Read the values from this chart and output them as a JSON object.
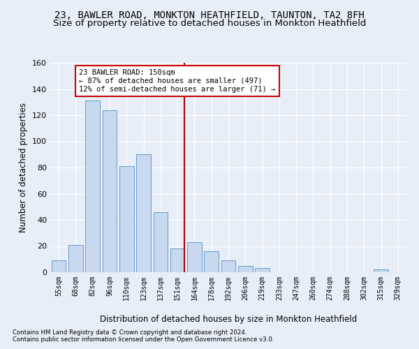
{
  "title": "23, BAWLER ROAD, MONKTON HEATHFIELD, TAUNTON, TA2 8FH",
  "subtitle": "Size of property relative to detached houses in Monkton Heathfield",
  "xlabel": "Distribution of detached houses by size in Monkton Heathfield",
  "ylabel": "Number of detached properties",
  "bar_labels": [
    "55sqm",
    "68sqm",
    "82sqm",
    "96sqm",
    "110sqm",
    "123sqm",
    "137sqm",
    "151sqm",
    "164sqm",
    "178sqm",
    "192sqm",
    "206sqm",
    "219sqm",
    "233sqm",
    "247sqm",
    "260sqm",
    "274sqm",
    "288sqm",
    "302sqm",
    "315sqm",
    "329sqm"
  ],
  "bar_values": [
    9,
    21,
    131,
    124,
    81,
    90,
    46,
    18,
    23,
    16,
    9,
    5,
    3,
    0,
    0,
    0,
    0,
    0,
    0,
    2,
    0
  ],
  "bar_color": "#c8d8ee",
  "bar_edge_color": "#6699cc",
  "highlight_index": 7,
  "vline_color": "#aa0000",
  "ylim": [
    0,
    160
  ],
  "yticks": [
    0,
    20,
    40,
    60,
    80,
    100,
    120,
    140,
    160
  ],
  "annotation_text": "23 BAWLER ROAD: 150sqm\n← 87% of detached houses are smaller (497)\n12% of semi-detached houses are larger (71) →",
  "annotation_box_color": "#ffffff",
  "annotation_box_edge": "#cc0000",
  "footer_line1": "Contains HM Land Registry data © Crown copyright and database right 2024.",
  "footer_line2": "Contains public sector information licensed under the Open Government Licence v3.0.",
  "bg_color": "#e8eef8",
  "plot_bg_color": "#e8eef8",
  "title_fontsize": 10,
  "subtitle_fontsize": 9.5,
  "grid_color": "#ffffff"
}
